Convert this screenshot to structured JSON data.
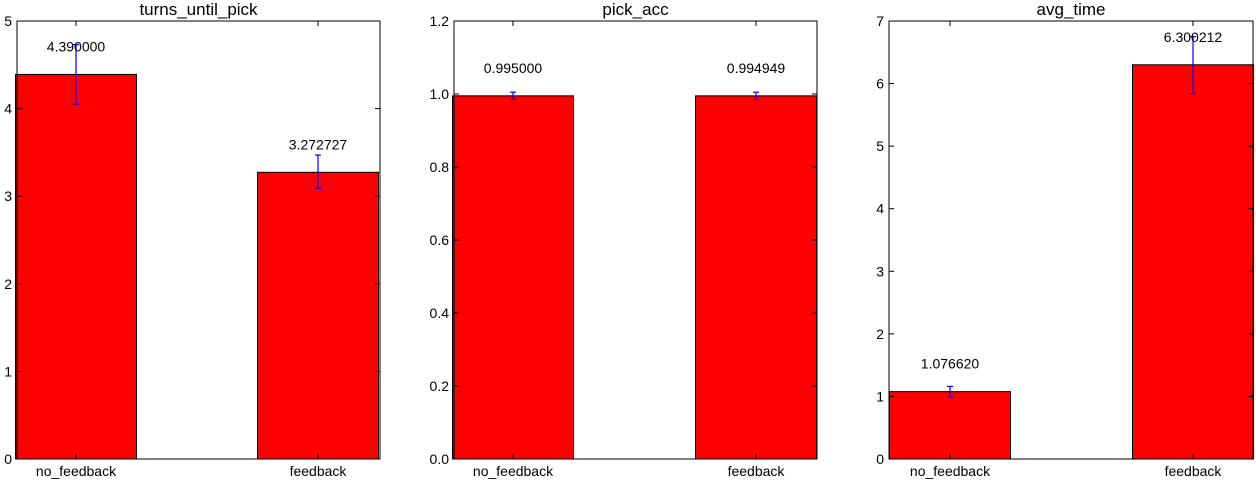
{
  "chart_data": [
    {
      "type": "bar",
      "title": "turns_until_pick",
      "categories": [
        "no_feedback",
        "feedback"
      ],
      "values": [
        4.39,
        3.272727
      ],
      "value_labels": [
        "4.390000",
        "3.272727"
      ],
      "error_high": [
        4.73,
        3.47
      ],
      "error_low": [
        4.05,
        3.09
      ],
      "ylim": [
        0,
        5
      ],
      "yticks": [
        0,
        1,
        2,
        3,
        4,
        5
      ],
      "ytick_labels": [
        "0",
        "1",
        "2",
        "3",
        "4",
        "5"
      ],
      "xlabel": "",
      "ylabel": "",
      "bar_color": "#ff0000",
      "error_color": "#0000ff",
      "grid": false
    },
    {
      "type": "bar",
      "title": "pick_acc",
      "categories": [
        "no_feedback",
        "feedback"
      ],
      "values": [
        0.995,
        0.994949
      ],
      "value_labels": [
        "0.995000",
        "0.994949"
      ],
      "error_high": [
        1.005,
        1.005
      ],
      "error_low": [
        0.985,
        0.985
      ],
      "ylim": [
        0,
        1.2
      ],
      "yticks": [
        0,
        0.2,
        0.4,
        0.6,
        0.8,
        1.0,
        1.2
      ],
      "ytick_labels": [
        "0.0",
        "0.2",
        "0.4",
        "0.6",
        "0.8",
        "1.0",
        "1.2"
      ],
      "xlabel": "",
      "ylabel": "",
      "bar_color": "#ff0000",
      "error_color": "#0000ff",
      "grid": false
    },
    {
      "type": "bar",
      "title": "avg_time",
      "categories": [
        "no_feedback",
        "feedback"
      ],
      "values": [
        1.07662,
        6.300212
      ],
      "value_labels": [
        "1.076620",
        "6.300212"
      ],
      "error_high": [
        1.16,
        6.75
      ],
      "error_low": [
        0.99,
        5.84
      ],
      "ylim": [
        0,
        7
      ],
      "yticks": [
        0,
        1,
        2,
        3,
        4,
        5,
        6,
        7
      ],
      "ytick_labels": [
        "0",
        "1",
        "2",
        "3",
        "4",
        "5",
        "6",
        "7"
      ],
      "xlabel": "",
      "ylabel": "",
      "bar_color": "#ff0000",
      "error_color": "#0000ff",
      "grid": false
    }
  ]
}
